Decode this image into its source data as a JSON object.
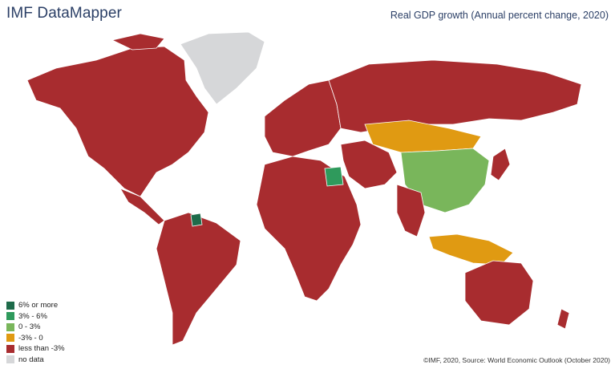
{
  "header": {
    "title": "IMF DataMapper",
    "subtitle": "Real GDP growth (Annual percent change, 2020)"
  },
  "legend": {
    "items": [
      {
        "label": "6% or more",
        "color": "#1e6b4a"
      },
      {
        "label": "3% - 6%",
        "color": "#2f9a5c"
      },
      {
        "label": "0 - 3%",
        "color": "#79b65b"
      },
      {
        "label": "-3% - 0",
        "color": "#e09a12"
      },
      {
        "label": "less than -3%",
        "color": "#a82c2f"
      },
      {
        "label": "no data",
        "color": "#d6d7d9"
      }
    ]
  },
  "source": "©IMF, 2020, Source: World Economic Outlook (October 2020)",
  "map": {
    "regions": [
      {
        "name": "north-america",
        "category": "less than -3%"
      },
      {
        "name": "greenland",
        "category": "no data"
      },
      {
        "name": "south-america",
        "category": "less than -3%"
      },
      {
        "name": "europe",
        "category": "less than -3%"
      },
      {
        "name": "russia",
        "category": "less than -3%"
      },
      {
        "name": "africa",
        "category": "less than -3%"
      },
      {
        "name": "middle-east",
        "category": "less than -3%"
      },
      {
        "name": "china",
        "category": "0 - 3%"
      },
      {
        "name": "mongolia-kazakhstan",
        "category": "-3% - 0"
      },
      {
        "name": "india",
        "category": "less than -3%"
      },
      {
        "name": "southeast-asia",
        "category": "-3% - 0"
      },
      {
        "name": "australia",
        "category": "less than -3%"
      },
      {
        "name": "egypt",
        "category": "3% - 6%"
      },
      {
        "name": "guyana",
        "category": "6% or more"
      }
    ]
  }
}
